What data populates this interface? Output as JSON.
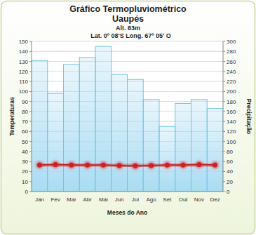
{
  "chart_data": {
    "type": "bar",
    "title": "Gráfico Termopluviométrico",
    "subtitle": "Uaupés",
    "annotations": [
      "Alt. 83m",
      "Lat. 0º 08'S Long. 67º 05' O"
    ],
    "x_label": "Meses do Ano",
    "y_label": "Temperaturas",
    "y2_label": "Precipitação",
    "categories": [
      "Jan",
      "Fev",
      "Mar",
      "Abr",
      "Mai",
      "Jun",
      "Jul",
      "Ago",
      "Set",
      "Out",
      "Nov",
      "Dez"
    ],
    "series": [
      {
        "type": "bar",
        "axis": "y2",
        "color": "#a9dcf3",
        "values": [
          262,
          196,
          254,
          268,
          290,
          234,
          224,
          184,
          130,
          176,
          184,
          166
        ]
      },
      {
        "type": "line",
        "color": "#e0191b",
        "marker": "circle",
        "values": [
          26.5,
          27,
          26.5,
          26.5,
          26.5,
          26,
          25.5,
          26,
          26.5,
          26.5,
          27,
          26.5
        ]
      }
    ],
    "ylim": [
      0,
      150
    ],
    "yticks": [
      0,
      10,
      20,
      30,
      40,
      50,
      60,
      70,
      80,
      90,
      100,
      110,
      120,
      130,
      140,
      150
    ],
    "y2lim": [
      0,
      300
    ],
    "y2ticks": [
      0,
      20,
      40,
      60,
      80,
      100,
      120,
      140,
      160,
      180,
      200,
      220,
      240,
      260,
      280,
      300
    ],
    "grid": true
  }
}
